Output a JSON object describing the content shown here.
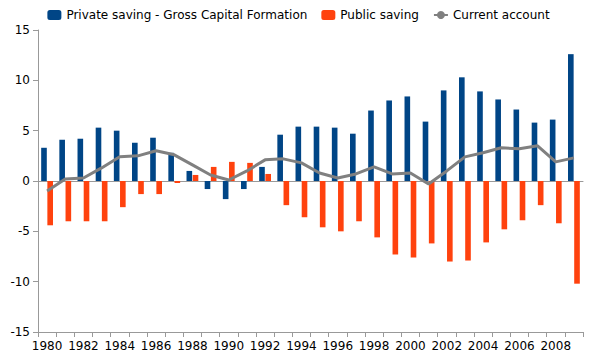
{
  "chart_data": {
    "type": "bar",
    "categories": [
      "1980",
      null,
      "1982",
      null,
      "1984",
      null,
      "1986",
      null,
      "1988",
      null,
      "1990",
      null,
      "1992",
      null,
      "1994",
      null,
      "1996",
      null,
      "1998",
      null,
      "2000",
      null,
      "2002",
      null,
      "2004",
      null,
      "2006",
      null,
      "2008",
      null
    ],
    "series": [
      {
        "name": "Private saving - Gross Capital Formation",
        "type": "bar",
        "color": "#004586",
        "values": [
          3.3,
          4.1,
          4.2,
          5.3,
          5.0,
          3.8,
          4.3,
          2.8,
          1.0,
          -0.8,
          -1.8,
          -0.8,
          1.4,
          4.6,
          5.4,
          5.4,
          5.3,
          4.7,
          7.0,
          8.0,
          8.4,
          5.9,
          9.0,
          10.3,
          8.9,
          8.1,
          7.1,
          5.8,
          6.1,
          12.6
        ]
      },
      {
        "name": "Public saving",
        "type": "bar",
        "color": "#ff420e",
        "values": [
          -4.4,
          -4.0,
          -4.0,
          -4.0,
          -2.6,
          -1.3,
          -1.3,
          -0.2,
          0.6,
          1.4,
          1.9,
          1.8,
          0.7,
          -2.4,
          -3.6,
          -4.6,
          -5.0,
          -4.0,
          -5.6,
          -7.3,
          -7.6,
          -6.2,
          -8.0,
          -7.9,
          -6.1,
          -4.8,
          -3.9,
          -2.4,
          -4.2,
          -10.2
        ]
      },
      {
        "name": "Current account",
        "type": "line",
        "color": "#808080",
        "values": [
          -1.0,
          0.2,
          0.3,
          1.3,
          2.4,
          2.5,
          3.0,
          2.6,
          1.6,
          0.6,
          0.1,
          1.0,
          2.1,
          2.2,
          1.8,
          0.8,
          0.3,
          0.7,
          1.4,
          0.7,
          0.8,
          -0.3,
          1.0,
          2.4,
          2.8,
          3.3,
          3.2,
          3.5,
          1.9,
          2.3
        ]
      }
    ],
    "ylim": [
      -15,
      15
    ],
    "yticks": [
      -15,
      -10,
      -5,
      0,
      5,
      10,
      15
    ],
    "grid": false,
    "legend": "top"
  }
}
